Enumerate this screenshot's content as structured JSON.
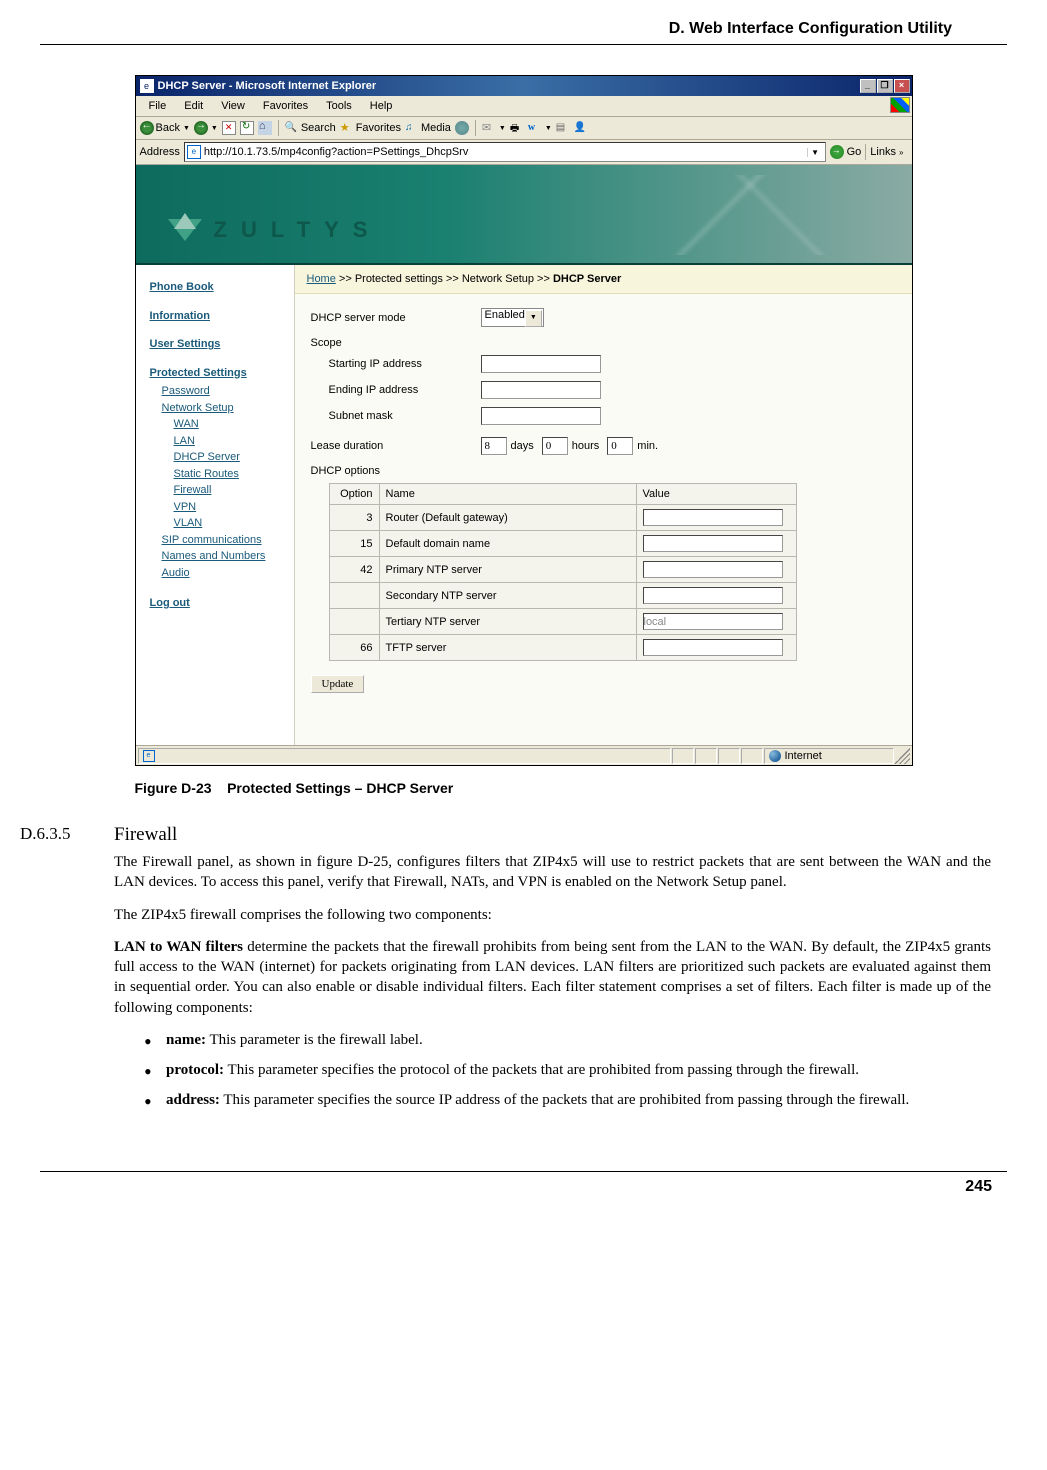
{
  "page": {
    "header": "D. Web Interface Configuration Utility",
    "footer": "245"
  },
  "window": {
    "title": "DHCP Server - Microsoft Internet Explorer",
    "menus": [
      "File",
      "Edit",
      "View",
      "Favorites",
      "Tools",
      "Help"
    ],
    "toolbar": {
      "back": "Back",
      "search": "Search",
      "favorites": "Favorites",
      "media": "Media"
    },
    "address_label": "Address",
    "url": "http://10.1.73.5/mp4config?action=PSettings_DhcpSrv",
    "go": "Go",
    "links": "Links",
    "status_zone": "Internet"
  },
  "zultys": {
    "brand": "ZULTYS"
  },
  "breadcrumb": {
    "home": "Home",
    "sep": " >> ",
    "p1": "Protected settings",
    "p2": "Network Setup",
    "p3": "DHCP Server"
  },
  "sidebar": {
    "phone_book": "Phone Book",
    "information": "Information",
    "user_settings": "User Settings",
    "protected": "Protected Settings",
    "password": "Password",
    "network_setup": "Network Setup",
    "wan": "WAN",
    "lan": "LAN",
    "dhcp": "DHCP Server",
    "static_routes": "Static Routes",
    "firewall": "Firewall",
    "vpn": "VPN",
    "vlan": "VLAN",
    "sip": "SIP communications",
    "names": "Names and Numbers",
    "audio": "Audio",
    "logout": "Log out"
  },
  "form": {
    "mode_label": "DHCP server mode",
    "mode_value": "Enabled",
    "scope_label": "Scope",
    "starting_ip": "Starting IP address",
    "ending_ip": "Ending IP address",
    "subnet": "Subnet mask",
    "lease_label": "Lease duration",
    "lease_days": "8",
    "days": "days",
    "lease_hours": "0",
    "hours": "hours",
    "lease_min": "0",
    "min": "min.",
    "options_label": "DHCP options",
    "th_option": "Option",
    "th_name": "Name",
    "th_value": "Value",
    "rows": [
      {
        "opt": "3",
        "name": "Router (Default gateway)",
        "val": ""
      },
      {
        "opt": "15",
        "name": "Default domain name",
        "val": ""
      },
      {
        "opt": "42",
        "name": "Primary NTP server",
        "val": ""
      },
      {
        "opt": "",
        "name": "Secondary NTP server",
        "val": ""
      },
      {
        "opt": "",
        "name": "Tertiary NTP server",
        "val": "local",
        "readonly": true
      },
      {
        "opt": "66",
        "name": "TFTP server",
        "val": ""
      }
    ],
    "update": "Update"
  },
  "caption": {
    "fig": "Figure D-23",
    "title": "Protected Settings – DHCP Server"
  },
  "doc": {
    "sec_num": "D.6.3.5",
    "sec_title": "Firewall",
    "p1": "The Firewall panel, as shown in figure D-25, configures filters that ZIP4x5 will use to restrict packets that are sent between the WAN and the LAN devices. To access this panel, verify that Firewall, NATs, and VPN is enabled on the Network Setup panel.",
    "p2": "The ZIP4x5 firewall comprises the following two components:",
    "p3a": "LAN to WAN filters",
    "p3b": " determine the packets that the firewall prohibits from being sent from the LAN to the WAN. By default, the ZIP4x5 grants full access to the WAN (internet) for packets originating from LAN devices. LAN filters are prioritized such packets are evaluated against them in sequential order. You can also enable or disable individual filters. Each filter statement comprises a set of filters. Each filter is made up of the following components:",
    "b1a": "name:",
    "b1b": " This parameter is the firewall label.",
    "b2a": "protocol:",
    "b2b": " This parameter specifies the protocol of the packets that are prohibited from passing through the firewall.",
    "b3a": "address:",
    "b3b": " This parameter specifies the source IP address of the packets that are prohibited from passing through the firewall."
  }
}
